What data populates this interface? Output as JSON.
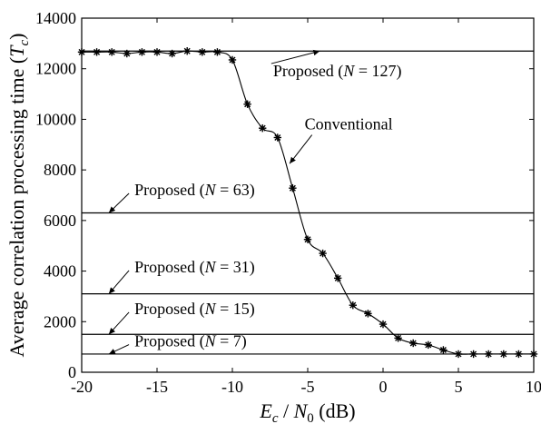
{
  "chart_data": {
    "type": "line",
    "xlim": [
      -20,
      10
    ],
    "ylim": [
      0,
      14000
    ],
    "x_ticks": [
      -20,
      -15,
      -10,
      -5,
      0,
      5,
      10
    ],
    "y_ticks": [
      0,
      2000,
      4000,
      6000,
      8000,
      10000,
      12000,
      14000
    ],
    "x_tick_labels": [
      "-20",
      "-15",
      "-10",
      "-5",
      "0",
      "5",
      "10"
    ],
    "y_tick_labels": [
      "0",
      "2000",
      "4000",
      "6000",
      "8000",
      "10000",
      "12000",
      "14000"
    ],
    "xlabel": {
      "e": "E",
      "e_sub": "c",
      "slash": " / ",
      "n": "N",
      "n_sub": "0",
      "unit": " (dB)"
    },
    "ylabel": {
      "text": "Average correlation processing time  (",
      "t": "T",
      "t_sub": "c",
      "close": ")"
    },
    "grid": false,
    "series": [
      {
        "name": "Conventional",
        "marker": "asterisk",
        "x": [
          -20,
          -19,
          -18,
          -17,
          -16,
          -15,
          -14,
          -13,
          -12,
          -11,
          -10,
          -9,
          -8,
          -7,
          -6,
          -5,
          -4,
          -3,
          -2,
          -1,
          0,
          1,
          2,
          3,
          4,
          5,
          6,
          7,
          8,
          9,
          10
        ],
        "y": [
          12660,
          12660,
          12660,
          12600,
          12660,
          12660,
          12600,
          12700,
          12660,
          12660,
          12350,
          10600,
          9650,
          9280,
          7280,
          5250,
          4700,
          3720,
          2650,
          2320,
          1900,
          1350,
          1150,
          1080,
          880,
          720,
          720,
          720,
          720,
          720,
          720
        ]
      },
      {
        "name": "Proposed (N = 127)",
        "value": 12700
      },
      {
        "name": "Proposed (N = 63)",
        "value": 6300
      },
      {
        "name": "Proposed (N = 31)",
        "value": 3100
      },
      {
        "name": "Proposed (N = 15)",
        "value": 1500
      },
      {
        "name": "Proposed (N = 7)",
        "value": 720
      }
    ],
    "annotations": [
      {
        "key": "n127",
        "prefix": "Proposed (",
        "var": "N",
        "suffix": " = 127)",
        "tx": -7.3,
        "ty": 11700,
        "ax": -4.2,
        "ay": 12700
      },
      {
        "key": "n63",
        "prefix": "Proposed (",
        "var": "N",
        "suffix": " = 63)",
        "tx": -16.5,
        "ty": 7000,
        "ax": -18.2,
        "ay": 6300
      },
      {
        "key": "n31",
        "prefix": "Proposed (",
        "var": "N",
        "suffix": " = 31)",
        "tx": -16.5,
        "ty": 3950,
        "ax": -18.2,
        "ay": 3100
      },
      {
        "key": "n15",
        "prefix": "Proposed (",
        "var": "N",
        "suffix": " = 15)",
        "tx": -16.5,
        "ty": 2300,
        "ax": -18.2,
        "ay": 1500
      },
      {
        "key": "n7",
        "prefix": "Proposed (",
        "var": "N",
        "suffix": " = 7)",
        "tx": -16.5,
        "ty": 1020,
        "ax": -18.2,
        "ay": 720
      },
      {
        "key": "conv",
        "prefix": "Conventional",
        "var": "",
        "suffix": "",
        "tx": -5.2,
        "ty": 9600,
        "ax": -6.2,
        "ay": 8250
      }
    ]
  }
}
